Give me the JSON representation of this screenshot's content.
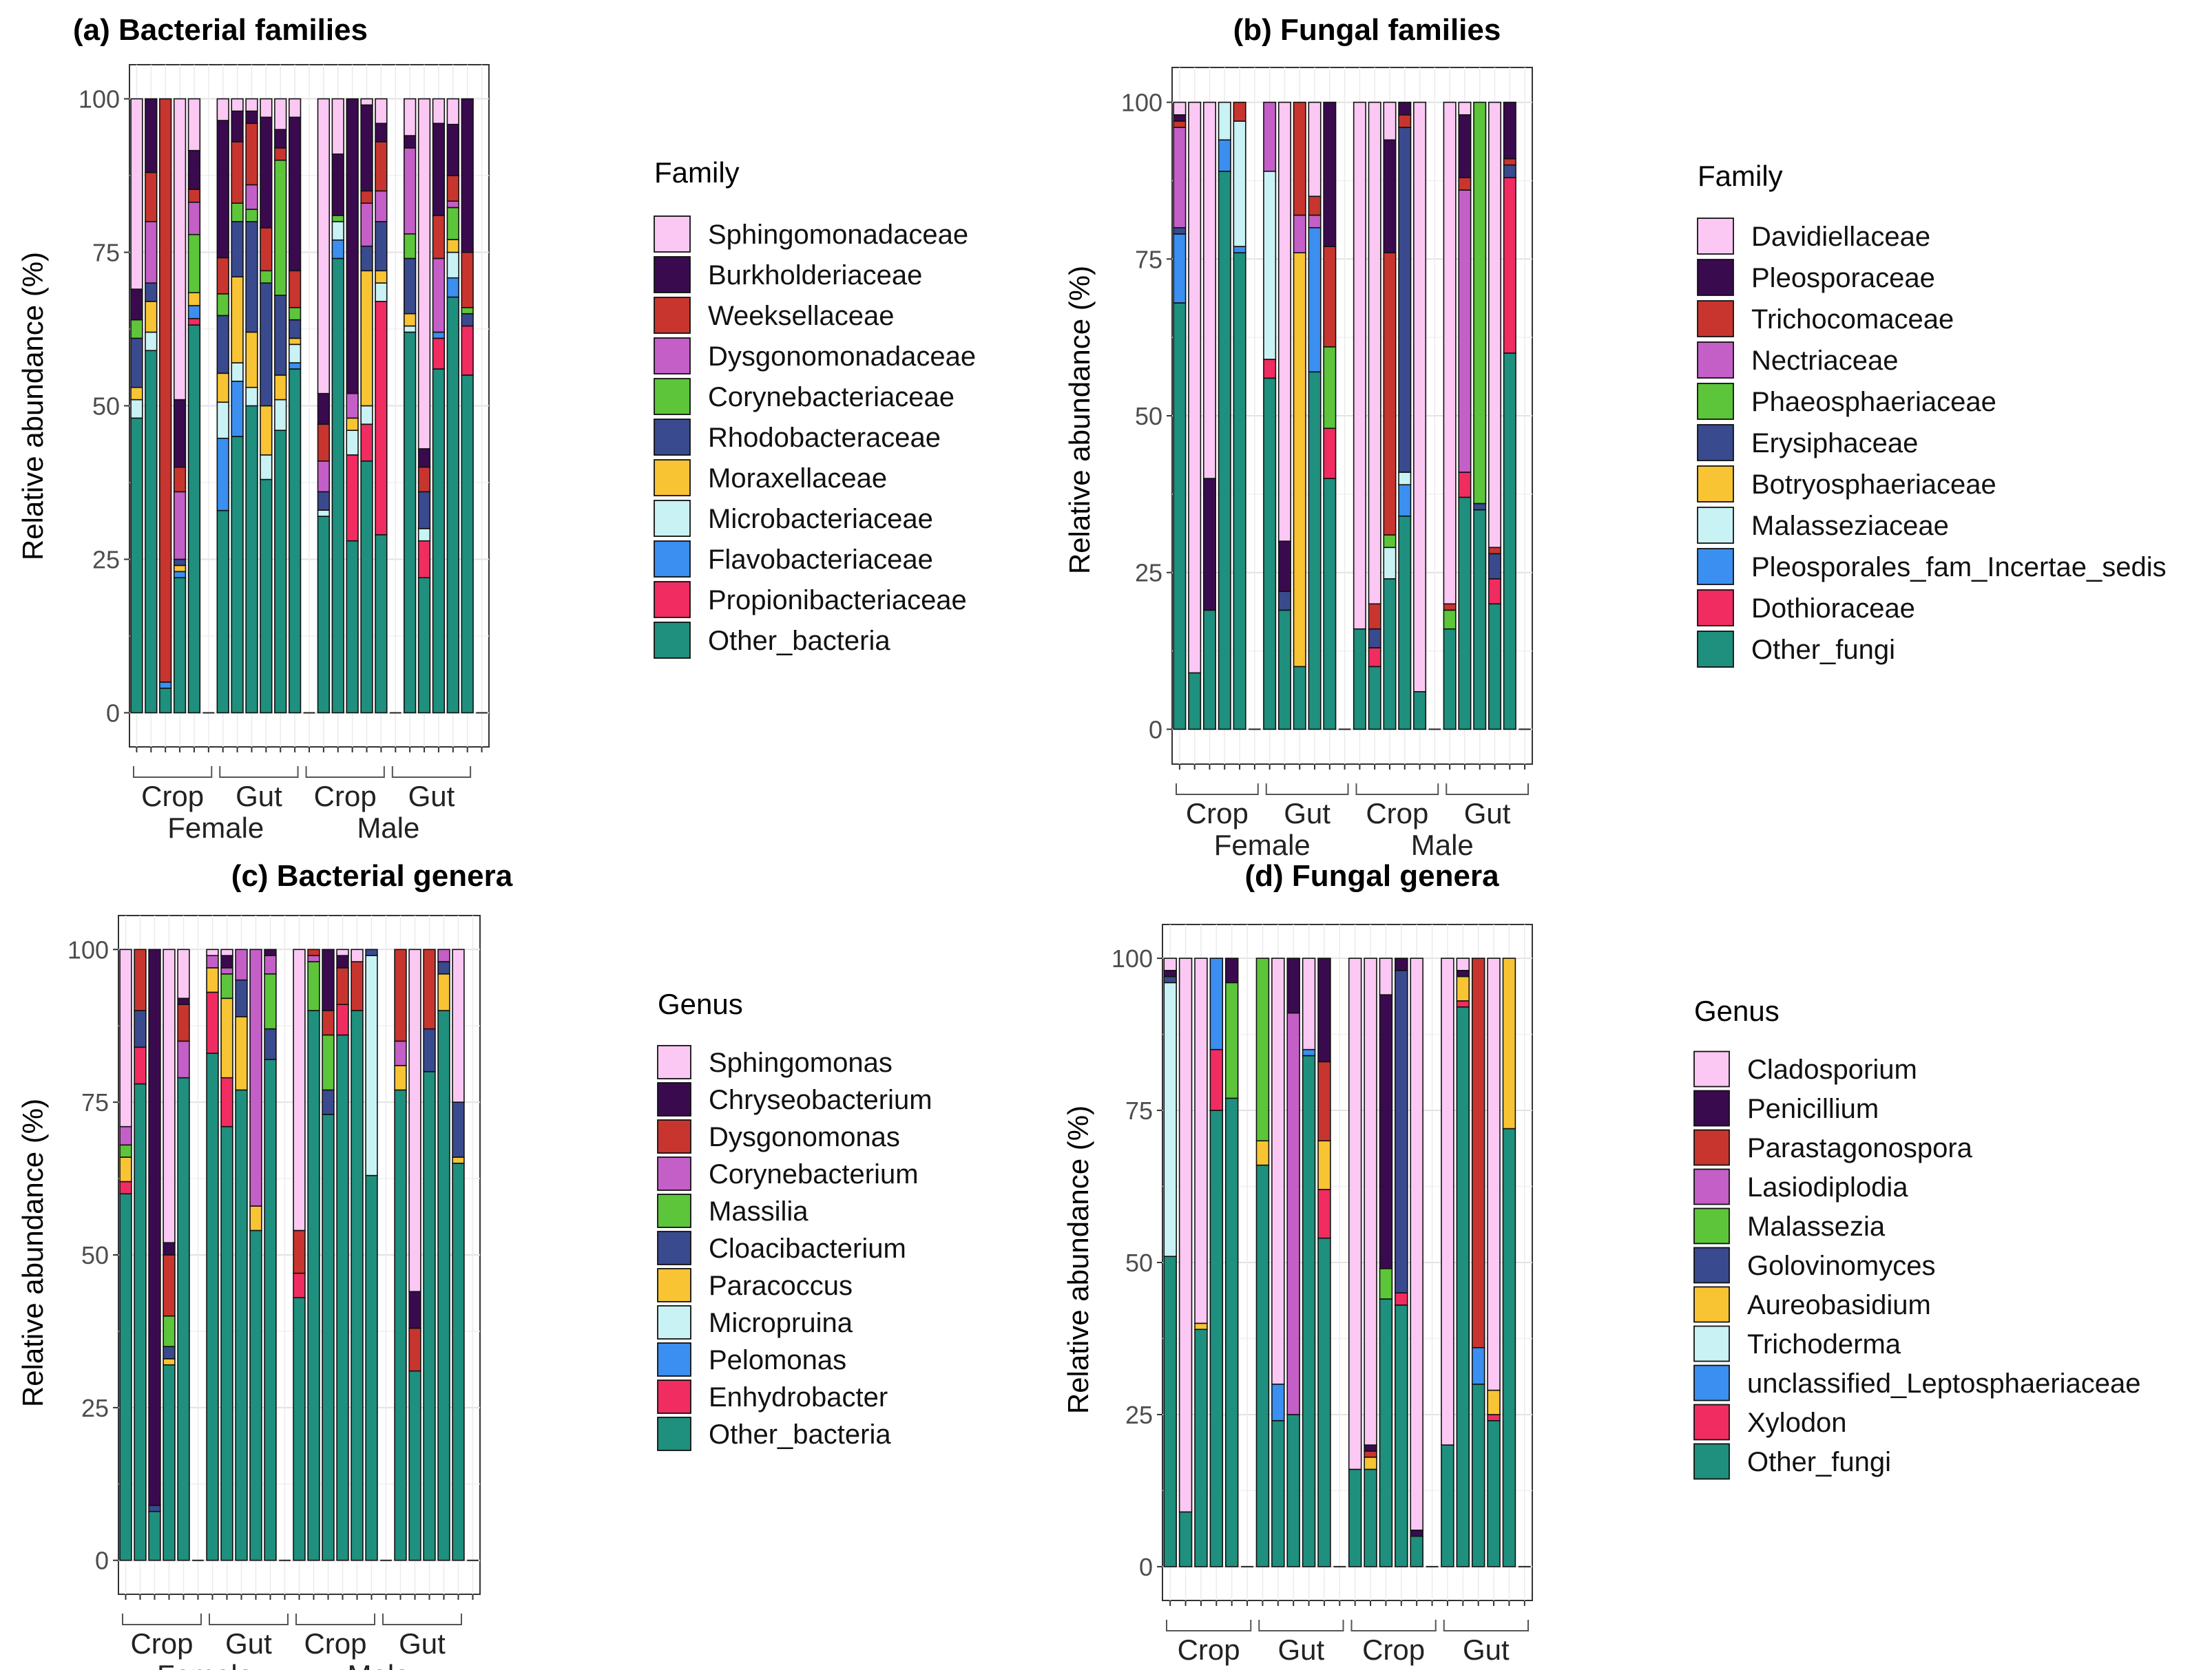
{
  "groups": {
    "sex": [
      "Female",
      "Male"
    ],
    "tissue": [
      "Crop",
      "Gut",
      "Crop",
      "Gut"
    ]
  },
  "chart_data": [
    {
      "type": "stacked-bar",
      "title": "(a) Bacterial families",
      "ylabel": "Relative abundance (%)",
      "ylim": [
        0,
        100
      ],
      "yticks": [
        0,
        25,
        50,
        75,
        100
      ],
      "legend_title": "Family",
      "categories": [
        "Sphingomonadaceae",
        "Burkholderiaceae",
        "Weeksellaceae",
        "Dysgonomonadaceae",
        "Corynebacteriaceae",
        "Rhodobacteraceae",
        "Moraxellaceae",
        "Microbacteriaceae",
        "Flavobacteriaceae",
        "Propionibacteriaceae",
        "Other_bacteria"
      ],
      "colors": [
        "#fbc8f4",
        "#3a0a4e",
        "#c8352f",
        "#c45fc7",
        "#5cc53a",
        "#3a4a8e",
        "#f8c434",
        "#c8f2f4",
        "#3a8ff0",
        "#f02c60",
        "#1f8f7e"
      ],
      "bars": [
        [
          31,
          5,
          0,
          0,
          3,
          8,
          2,
          3,
          0,
          0,
          48
        ],
        [
          0,
          12,
          8,
          10,
          0,
          3,
          5,
          3,
          0,
          0,
          59
        ],
        [
          0,
          0,
          95,
          0,
          0,
          0,
          0,
          0,
          1,
          0,
          4
        ],
        [
          49,
          11,
          4,
          11,
          0,
          1,
          1,
          0,
          1,
          0,
          22
        ],
        [
          8,
          6,
          2,
          5,
          9,
          0,
          2,
          0,
          2,
          1,
          60
        ],
        [],
        [
          3,
          19,
          5,
          0,
          3,
          8,
          4,
          5,
          10,
          0,
          28
        ],
        [
          2,
          5,
          10,
          0,
          3,
          9,
          14,
          3,
          9,
          0,
          45
        ],
        [
          2,
          2,
          10,
          4,
          2,
          18,
          9,
          3,
          0,
          0,
          50
        ],
        [
          3,
          18,
          7,
          0,
          2,
          20,
          8,
          4,
          0,
          0,
          38
        ],
        [
          5,
          3,
          2,
          0,
          22,
          13,
          4,
          5,
          0,
          0,
          46
        ],
        [
          3,
          25,
          6,
          0,
          2,
          3,
          1,
          3,
          1,
          0,
          56
        ],
        [],
        [
          48,
          5,
          6,
          5,
          0,
          3,
          0,
          1,
          0,
          0,
          32
        ],
        [
          9,
          10,
          0,
          0,
          1,
          0,
          0,
          3,
          3,
          0,
          74
        ],
        [
          0,
          48,
          0,
          4,
          0,
          0,
          2,
          4,
          0,
          14,
          28
        ],
        [
          1,
          14,
          2,
          7,
          0,
          4,
          22,
          3,
          0,
          6,
          41
        ],
        [
          4,
          3,
          8,
          5,
          0,
          8,
          2,
          3,
          0,
          38,
          29
        ],
        [],
        [
          6,
          2,
          0,
          14,
          4,
          9,
          2,
          1,
          0,
          0,
          62
        ],
        [
          57,
          3,
          4,
          0,
          0,
          6,
          0,
          2,
          0,
          6,
          22
        ],
        [
          4,
          15,
          7,
          12,
          0,
          0,
          0,
          0,
          1,
          5,
          56
        ],
        [
          4,
          8,
          4,
          1,
          5,
          0,
          2,
          4,
          3,
          0,
          65
        ],
        [
          0,
          25,
          9,
          0,
          1,
          2,
          0,
          0,
          0,
          8,
          55
        ],
        []
      ]
    },
    {
      "type": "stacked-bar",
      "title": "(b) Fungal families",
      "ylabel": "Relative abundance (%)",
      "ylim": [
        0,
        100
      ],
      "yticks": [
        0,
        25,
        50,
        75,
        100
      ],
      "legend_title": "Family",
      "categories": [
        "Davidiellaceae",
        "Pleosporaceae",
        "Trichocomaceae",
        "Nectriaceae",
        "Phaeosphaeriaceae",
        "Erysiphaceae",
        "Botryosphaeriaceae",
        "Malasseziaceae",
        "Pleosporales_fam_Incertae_sedis",
        "Dothioraceae",
        "Other_fungi"
      ],
      "colors": [
        "#fbc8f4",
        "#3a0a4e",
        "#c8352f",
        "#c45fc7",
        "#5cc53a",
        "#3a4a8e",
        "#f8c434",
        "#c8f2f4",
        "#3a8ff0",
        "#f02c60",
        "#1f8f7e"
      ],
      "bars": [
        [
          2,
          1,
          1,
          16,
          0,
          1,
          0,
          0,
          11,
          0,
          68
        ],
        [
          91,
          0,
          0,
          0,
          0,
          0,
          0,
          0,
          0,
          0,
          9
        ],
        [
          60,
          21,
          0,
          0,
          0,
          0,
          0,
          0,
          0,
          0,
          19
        ],
        [
          0,
          0,
          0,
          0,
          0,
          0,
          0,
          6,
          5,
          0,
          89
        ],
        [
          0,
          0,
          3,
          0,
          0,
          0,
          0,
          20,
          1,
          0,
          76
        ],
        [],
        [
          0,
          0,
          0,
          11,
          0,
          0,
          0,
          30,
          0,
          3,
          56
        ],
        [
          70,
          8,
          0,
          0,
          0,
          3,
          0,
          0,
          0,
          0,
          19
        ],
        [
          0,
          0,
          18,
          6,
          0,
          0,
          66,
          0,
          0,
          0,
          10
        ],
        [
          15,
          0,
          3,
          2,
          0,
          0,
          0,
          0,
          23,
          0,
          57
        ],
        [
          0,
          23,
          16,
          0,
          13,
          0,
          0,
          0,
          0,
          8,
          40
        ],
        [],
        [
          84,
          0,
          0,
          0,
          0,
          0,
          0,
          0,
          0,
          0,
          16
        ],
        [
          80,
          0,
          4,
          0,
          0,
          3,
          0,
          0,
          0,
          3,
          10
        ],
        [
          6,
          18,
          45,
          0,
          2,
          0,
          0,
          5,
          0,
          0,
          24
        ],
        [
          0,
          2,
          2,
          0,
          0,
          55,
          0,
          2,
          5,
          0,
          34
        ],
        [
          94,
          0,
          0,
          0,
          0,
          0,
          0,
          0,
          0,
          0,
          6
        ],
        [],
        [
          80,
          0,
          1,
          0,
          3,
          0,
          0,
          0,
          0,
          0,
          16
        ],
        [
          2,
          10,
          2,
          45,
          0,
          0,
          0,
          0,
          0,
          4,
          37
        ],
        [
          0,
          0,
          0,
          0,
          64,
          1,
          0,
          0,
          0,
          0,
          35
        ],
        [
          71,
          0,
          1,
          0,
          0,
          4,
          0,
          0,
          0,
          4,
          20
        ],
        [
          0,
          9,
          1,
          0,
          0,
          2,
          0,
          0,
          0,
          28,
          60
        ],
        []
      ]
    },
    {
      "type": "stacked-bar",
      "title": "(c) Bacterial genera",
      "ylabel": "Relative abundance (%)",
      "ylim": [
        0,
        100
      ],
      "yticks": [
        0,
        25,
        50,
        75,
        100
      ],
      "legend_title": "Genus",
      "categories": [
        "Sphingomonas",
        "Chryseobacterium",
        "Dysgonomonas",
        "Corynebacterium",
        "Massilia",
        "Cloacibacterium",
        "Paracoccus",
        "Micropruina",
        "Pelomonas",
        "Enhydrobacter",
        "Other_bacteria"
      ],
      "colors": [
        "#fbc8f4",
        "#3a0a4e",
        "#c8352f",
        "#c45fc7",
        "#5cc53a",
        "#3a4a8e",
        "#f8c434",
        "#c8f2f4",
        "#3a8ff0",
        "#f02c60",
        "#1f8f7e"
      ],
      "bars": [
        [
          29,
          0,
          0,
          3,
          2,
          0,
          4,
          0,
          0,
          2,
          60
        ],
        [
          0,
          0,
          10,
          0,
          0,
          6,
          0,
          0,
          0,
          6,
          78
        ],
        [
          0,
          91,
          0,
          0,
          0,
          1,
          0,
          0,
          0,
          0,
          8
        ],
        [
          48,
          2,
          10,
          0,
          5,
          2,
          1,
          0,
          0,
          0,
          32
        ],
        [
          8,
          1,
          6,
          6,
          0,
          0,
          0,
          0,
          0,
          0,
          79
        ],
        [],
        [
          1,
          0,
          0,
          2,
          0,
          0,
          4,
          0,
          0,
          10,
          83
        ],
        [
          1,
          2,
          0,
          1,
          4,
          0,
          13,
          0,
          0,
          8,
          71
        ],
        [
          0,
          0,
          0,
          5,
          0,
          6,
          12,
          0,
          0,
          0,
          77
        ],
        [
          0,
          0,
          0,
          42,
          0,
          0,
          4,
          0,
          0,
          0,
          54
        ],
        [
          0,
          1,
          0,
          3,
          9,
          5,
          0,
          0,
          0,
          0,
          82
        ],
        [],
        [
          46,
          0,
          7,
          0,
          0,
          0,
          0,
          0,
          0,
          4,
          43
        ],
        [
          0,
          0,
          1,
          1,
          8,
          0,
          0,
          0,
          0,
          0,
          90
        ],
        [
          0,
          10,
          4,
          0,
          9,
          4,
          0,
          0,
          0,
          0,
          73
        ],
        [
          1,
          2,
          6,
          0,
          0,
          0,
          0,
          0,
          0,
          5,
          86
        ],
        [
          2,
          0,
          8,
          0,
          0,
          0,
          0,
          0,
          0,
          0,
          90
        ],
        [
          0,
          0,
          0,
          0,
          0,
          1,
          0,
          36,
          0,
          0,
          63
        ],
        [],
        [
          0,
          0,
          15,
          4,
          0,
          0,
          4,
          0,
          0,
          0,
          77
        ],
        [
          56,
          6,
          7,
          0,
          0,
          0,
          0,
          0,
          0,
          0,
          31
        ],
        [
          0,
          0,
          13,
          0,
          0,
          7,
          0,
          0,
          0,
          0,
          80
        ],
        [
          0,
          0,
          0,
          2,
          0,
          2,
          6,
          0,
          0,
          0,
          90
        ],
        [
          25,
          0,
          0,
          0,
          0,
          9,
          1,
          0,
          0,
          0,
          65
        ],
        []
      ]
    },
    {
      "type": "stacked-bar",
      "title": "(d) Fungal genera",
      "ylabel": "Relative abundance (%)",
      "ylim": [
        0,
        100
      ],
      "yticks": [
        0,
        25,
        50,
        75,
        100
      ],
      "legend_title": "Genus",
      "categories": [
        "Cladosporium",
        "Penicillium",
        "Parastagonospora",
        "Lasiodiplodia",
        "Malassezia",
        "Golovinomyces",
        "Aureobasidium",
        "Trichoderma",
        "unclassified_Leptosphaeriaceae",
        "Xylodon",
        "Other_fungi"
      ],
      "colors": [
        "#fbc8f4",
        "#3a0a4e",
        "#c8352f",
        "#c45fc7",
        "#5cc53a",
        "#3a4a8e",
        "#f8c434",
        "#c8f2f4",
        "#3a8ff0",
        "#f02c60",
        "#1f8f7e"
      ],
      "bars": [
        [
          2,
          1,
          0,
          0,
          0,
          1,
          0,
          45,
          0,
          0,
          51
        ],
        [
          91,
          0,
          0,
          0,
          0,
          0,
          0,
          0,
          0,
          0,
          9
        ],
        [
          60,
          0,
          0,
          0,
          0,
          0,
          1,
          0,
          0,
          0,
          39
        ],
        [
          0,
          0,
          0,
          0,
          0,
          0,
          0,
          0,
          15,
          10,
          75
        ],
        [
          0,
          4,
          0,
          0,
          19,
          0,
          0,
          0,
          0,
          0,
          77
        ],
        [],
        [
          0,
          0,
          0,
          0,
          30,
          0,
          4,
          0,
          0,
          0,
          66
        ],
        [
          70,
          0,
          0,
          0,
          0,
          0,
          0,
          0,
          6,
          0,
          24
        ],
        [
          0,
          9,
          0,
          66,
          0,
          0,
          0,
          0,
          0,
          0,
          25
        ],
        [
          15,
          0,
          0,
          0,
          0,
          0,
          0,
          0,
          1,
          0,
          84
        ],
        [
          0,
          17,
          13,
          0,
          0,
          0,
          8,
          0,
          0,
          8,
          54
        ],
        [],
        [
          84,
          0,
          0,
          0,
          0,
          0,
          0,
          0,
          0,
          0,
          16
        ],
        [
          80,
          1,
          1,
          0,
          0,
          0,
          2,
          0,
          0,
          0,
          16
        ],
        [
          6,
          45,
          0,
          0,
          5,
          0,
          0,
          0,
          0,
          0,
          44
        ],
        [
          0,
          2,
          0,
          0,
          0,
          53,
          0,
          0,
          0,
          2,
          43
        ],
        [
          94,
          1,
          0,
          0,
          0,
          0,
          0,
          0,
          0,
          0,
          5
        ],
        [],
        [
          80,
          0,
          0,
          0,
          0,
          0,
          0,
          0,
          0,
          0,
          20
        ],
        [
          2,
          1,
          0,
          0,
          0,
          0,
          4,
          0,
          0,
          1,
          92
        ],
        [
          0,
          0,
          64,
          0,
          0,
          0,
          0,
          0,
          6,
          0,
          30
        ],
        [
          71,
          0,
          0,
          0,
          0,
          0,
          4,
          0,
          0,
          1,
          24
        ],
        [
          0,
          0,
          0,
          0,
          0,
          0,
          28,
          0,
          0,
          0,
          72
        ],
        []
      ]
    }
  ]
}
